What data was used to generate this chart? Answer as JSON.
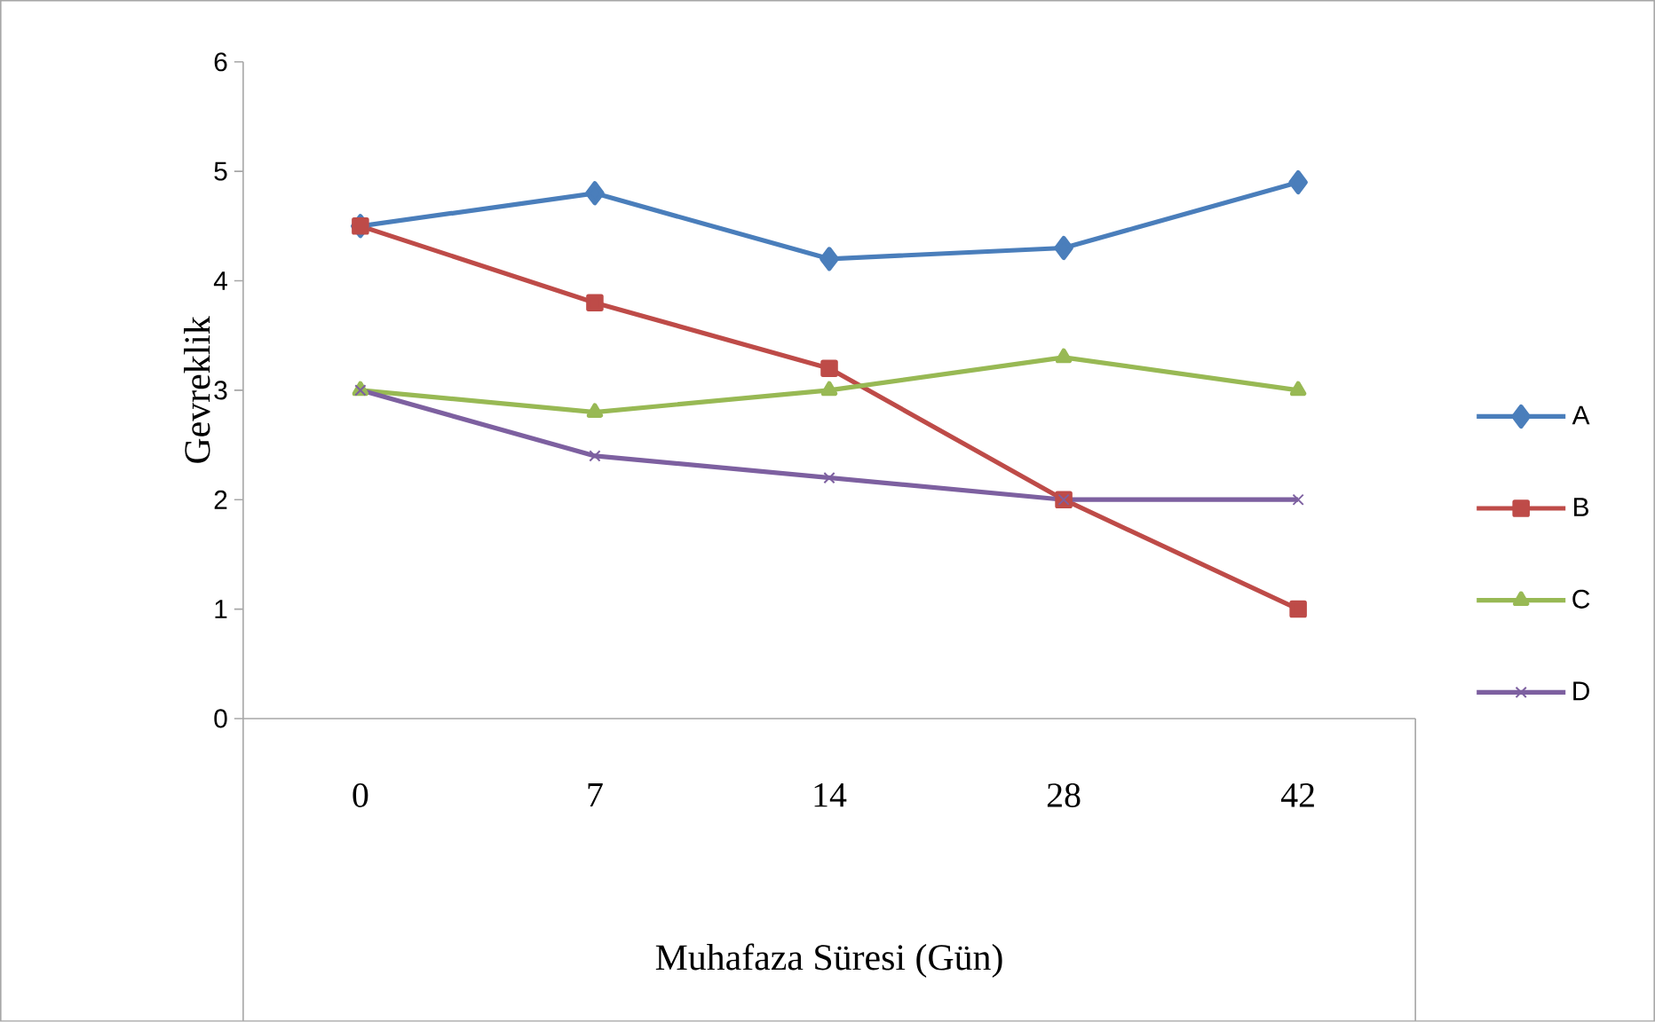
{
  "chart_data": {
    "type": "line",
    "xlabel": "Muhafaza Süresi (Gün)",
    "ylabel": "Gevreklik",
    "categories": [
      "0",
      "7",
      "14",
      "28",
      "42"
    ],
    "ylim": [
      0,
      6
    ],
    "yticks": [
      0,
      1,
      2,
      3,
      4,
      5,
      6
    ],
    "grid": false,
    "legend": "right",
    "series": [
      {
        "name": "A",
        "color": "#4a7ebb",
        "marker": "diamond",
        "values": [
          4.5,
          4.8,
          4.2,
          4.3,
          4.9
        ]
      },
      {
        "name": "B",
        "color": "#be4b48",
        "marker": "square",
        "values": [
          4.5,
          3.8,
          3.2,
          2.0,
          1.0
        ]
      },
      {
        "name": "C",
        "color": "#98b954",
        "marker": "triangle",
        "values": [
          3.0,
          2.8,
          3.0,
          3.3,
          3.0
        ]
      },
      {
        "name": "D",
        "color": "#7d60a0",
        "marker": "cross",
        "values": [
          3.0,
          2.4,
          2.2,
          2.0,
          2.0
        ]
      }
    ]
  }
}
